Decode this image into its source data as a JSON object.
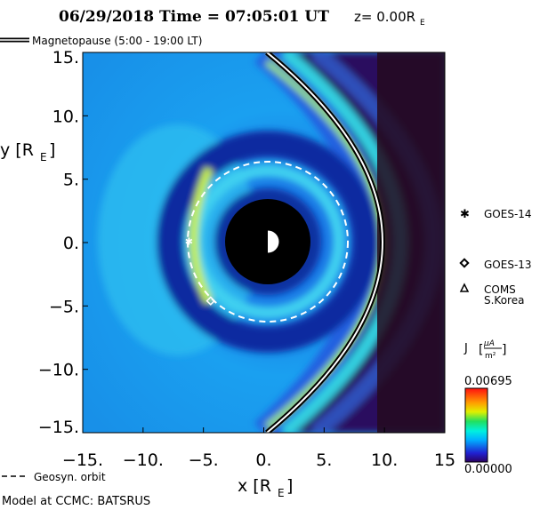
{
  "chart_data": {
    "type": "heatmap",
    "title": "06/29/2018 Time = 07:05:01 UT",
    "title_suffix": "z= 0.00R",
    "title_suffix_sub": "E",
    "xlabel": "x [R",
    "xlabel_sub": "E",
    "xlabel_end": "]",
    "ylabel": "y [R",
    "ylabel_sub": "E",
    "ylabel_end": "]",
    "xlim": [
      -15,
      15
    ],
    "ylim": [
      -15,
      15
    ],
    "xticks": [
      -15,
      -10,
      -5,
      0,
      5,
      10,
      15
    ],
    "xtick_labels": [
      "-15.",
      "-10.",
      "-5.",
      "0.",
      "5.",
      "10.",
      "15"
    ],
    "yticks": [
      15,
      10,
      5,
      0,
      -5,
      -10,
      -15
    ],
    "ytick_labels": [
      "15.",
      "10.",
      "5.",
      "0.",
      "-5.",
      "-10.",
      "-15."
    ],
    "magnetopause_label": "Magnetopause (5:00 - 19:00 LT)",
    "magnetopause_standoff_re": 10,
    "geosync_label": "Geosyn. orbit",
    "geosync_radius_re": 6.6,
    "inner_boundary_re": 3.5,
    "satellites": [
      {
        "name": "GOES-14",
        "symbol": "asterisk",
        "x": -6.2,
        "y": 0.1
      },
      {
        "name": "GOES-13",
        "symbol": "diamond",
        "x": -4.4,
        "y": -4.6
      },
      {
        "name": "COMS",
        "name2": "S.Korea",
        "symbol": "triangle"
      }
    ],
    "colorbar": {
      "label": "J",
      "unit_num": "µA",
      "unit_den": "m²",
      "max_label": "0.00695",
      "min_label": "0.00000",
      "max": 0.00695,
      "min": 0
    },
    "credit": "Model at CCMC: BATSRUS"
  }
}
